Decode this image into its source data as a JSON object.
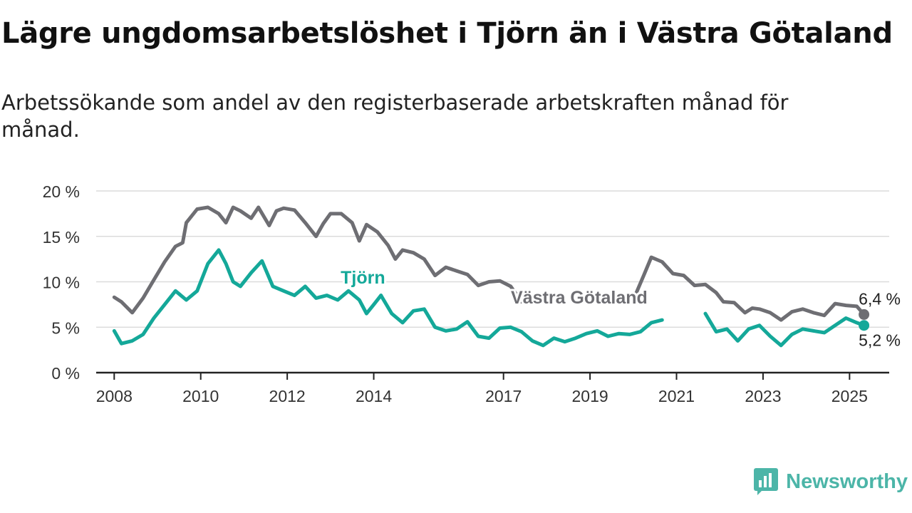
{
  "header": {
    "title": "Lägre ungdomsarbetslöshet i Tjörn än i Västra Götaland",
    "subtitle": "Arbetssökande som andel av den registerbaserade arbetskraften månad för månad."
  },
  "brand": {
    "name": "Newsworthy",
    "color": "#4cb5a8"
  },
  "chart_data": {
    "type": "line",
    "y_ticks": [
      "0 %",
      "5 %",
      "10 %",
      "15 %",
      "20 %"
    ],
    "x_ticks": [
      "2008",
      "2010",
      "2012",
      "2014",
      "2017",
      "2019",
      "2021",
      "2023",
      "2025"
    ],
    "ylim": [
      0,
      20
    ],
    "xlim": [
      "2007-08",
      "2025-12"
    ],
    "grid": true,
    "series": [
      {
        "name": "Västra Götaland",
        "color": "#6e6e73",
        "end_label": "6,4 %",
        "points": [
          [
            "2008-01",
            8.3
          ],
          [
            "2008-03",
            7.8
          ],
          [
            "2008-06",
            6.6
          ],
          [
            "2008-09",
            8.2
          ],
          [
            "2008-12",
            10.2
          ],
          [
            "2009-03",
            12.2
          ],
          [
            "2009-06",
            13.9
          ],
          [
            "2009-08",
            14.3
          ],
          [
            "2009-09",
            16.5
          ],
          [
            "2009-12",
            18.0
          ],
          [
            "2010-03",
            18.2
          ],
          [
            "2010-06",
            17.5
          ],
          [
            "2010-08",
            16.5
          ],
          [
            "2010-10",
            18.2
          ],
          [
            "2010-12",
            17.8
          ],
          [
            "2011-03",
            17.0
          ],
          [
            "2011-05",
            18.2
          ],
          [
            "2011-08",
            16.2
          ],
          [
            "2011-10",
            17.8
          ],
          [
            "2011-12",
            18.1
          ],
          [
            "2012-03",
            17.9
          ],
          [
            "2012-06",
            16.5
          ],
          [
            "2012-09",
            15.0
          ],
          [
            "2012-11",
            16.4
          ],
          [
            "2013-01",
            17.5
          ],
          [
            "2013-04",
            17.5
          ],
          [
            "2013-07",
            16.5
          ],
          [
            "2013-09",
            14.5
          ],
          [
            "2013-11",
            16.3
          ],
          [
            "2014-02",
            15.5
          ],
          [
            "2014-05",
            14.0
          ],
          [
            "2014-07",
            12.5
          ],
          [
            "2014-09",
            13.5
          ],
          [
            "2014-12",
            13.2
          ],
          [
            "2015-03",
            12.5
          ],
          [
            "2015-06",
            10.7
          ],
          [
            "2015-09",
            11.6
          ],
          [
            "2015-12",
            11.2
          ],
          [
            "2016-03",
            10.8
          ],
          [
            "2016-06",
            9.6
          ],
          [
            "2016-09",
            10.0
          ],
          [
            "2016-12",
            10.1
          ],
          [
            "2017-03",
            9.5
          ],
          [
            "2017-06",
            7.8
          ]
        ],
        "segments": [
          [
            [
              "2020-01",
              8.0
            ],
            [
              "2020-04",
              10.8
            ],
            [
              "2020-06",
              12.7
            ],
            [
              "2020-09",
              12.2
            ],
            [
              "2020-12",
              10.9
            ],
            [
              "2021-03",
              10.7
            ],
            [
              "2021-06",
              9.6
            ],
            [
              "2021-09",
              9.7
            ],
            [
              "2021-12",
              8.8
            ],
            [
              "2022-02",
              7.8
            ],
            [
              "2022-05",
              7.7
            ],
            [
              "2022-08",
              6.6
            ],
            [
              "2022-10",
              7.1
            ],
            [
              "2022-12",
              7.0
            ],
            [
              "2023-03",
              6.6
            ],
            [
              "2023-06",
              5.8
            ],
            [
              "2023-09",
              6.7
            ],
            [
              "2023-12",
              7.0
            ],
            [
              "2024-03",
              6.6
            ],
            [
              "2024-06",
              6.3
            ],
            [
              "2024-09",
              7.6
            ],
            [
              "2024-12",
              7.4
            ],
            [
              "2025-03",
              7.3
            ],
            [
              "2025-05",
              6.4
            ]
          ]
        ]
      },
      {
        "name": "Tjörn",
        "color": "#14a899",
        "end_label": "5,2 %",
        "points": [
          [
            "2008-01",
            4.6
          ],
          [
            "2008-03",
            3.2
          ],
          [
            "2008-06",
            3.5
          ],
          [
            "2008-09",
            4.2
          ],
          [
            "2008-12",
            6.0
          ],
          [
            "2009-03",
            7.5
          ],
          [
            "2009-06",
            9.0
          ],
          [
            "2009-09",
            8.0
          ],
          [
            "2009-12",
            9.0
          ],
          [
            "2010-03",
            12.0
          ],
          [
            "2010-06",
            13.5
          ],
          [
            "2010-08",
            12.0
          ],
          [
            "2010-10",
            10.0
          ],
          [
            "2010-12",
            9.5
          ],
          [
            "2011-03",
            11.0
          ],
          [
            "2011-06",
            12.3
          ],
          [
            "2011-09",
            9.5
          ],
          [
            "2011-12",
            9.0
          ],
          [
            "2012-03",
            8.5
          ],
          [
            "2012-06",
            9.5
          ],
          [
            "2012-09",
            8.2
          ],
          [
            "2012-12",
            8.5
          ],
          [
            "2013-03",
            8.0
          ],
          [
            "2013-06",
            9.0
          ],
          [
            "2013-09",
            8.0
          ],
          [
            "2013-11",
            6.5
          ],
          [
            "2014-01",
            7.5
          ],
          [
            "2014-03",
            8.5
          ]
        ],
        "segments": [
          [
            [
              "2014-03",
              8.5
            ],
            [
              "2014-06",
              6.5
            ],
            [
              "2014-09",
              5.5
            ],
            [
              "2014-12",
              6.8
            ],
            [
              "2015-03",
              7.0
            ],
            [
              "2015-06",
              5.0
            ],
            [
              "2015-09",
              4.6
            ],
            [
              "2015-12",
              4.8
            ],
            [
              "2016-03",
              5.6
            ],
            [
              "2016-06",
              4.0
            ],
            [
              "2016-09",
              3.8
            ],
            [
              "2016-12",
              4.9
            ],
            [
              "2017-03",
              5.0
            ],
            [
              "2017-06",
              4.5
            ],
            [
              "2017-09",
              3.5
            ],
            [
              "2017-12",
              3.0
            ],
            [
              "2018-03",
              3.8
            ],
            [
              "2018-06",
              3.4
            ],
            [
              "2018-09",
              3.8
            ],
            [
              "2018-12",
              4.3
            ],
            [
              "2019-03",
              4.6
            ],
            [
              "2019-06",
              4.0
            ],
            [
              "2019-09",
              4.3
            ],
            [
              "2019-12",
              4.2
            ],
            [
              "2020-03",
              4.5
            ],
            [
              "2020-06",
              5.5
            ],
            [
              "2020-09",
              5.8
            ]
          ],
          [
            [
              "2021-09",
              6.5
            ],
            [
              "2021-12",
              4.5
            ],
            [
              "2022-03",
              4.8
            ],
            [
              "2022-06",
              3.5
            ],
            [
              "2022-09",
              4.8
            ],
            [
              "2022-12",
              5.2
            ],
            [
              "2023-03",
              4.0
            ],
            [
              "2023-06",
              3.0
            ],
            [
              "2023-09",
              4.2
            ],
            [
              "2023-12",
              4.8
            ],
            [
              "2024-03",
              4.6
            ],
            [
              "2024-06",
              4.4
            ],
            [
              "2024-09",
              5.2
            ],
            [
              "2024-12",
              6.0
            ],
            [
              "2025-03",
              5.5
            ],
            [
              "2025-05",
              5.2
            ]
          ]
        ]
      }
    ],
    "annotations": [
      {
        "series": "Tjörn",
        "text": "Tjörn",
        "at": [
          "2013-10",
          9.8
        ]
      },
      {
        "series": "Västra Götaland",
        "text": "Västra Götaland",
        "at": [
          "2018-10",
          7.6
        ]
      }
    ]
  }
}
